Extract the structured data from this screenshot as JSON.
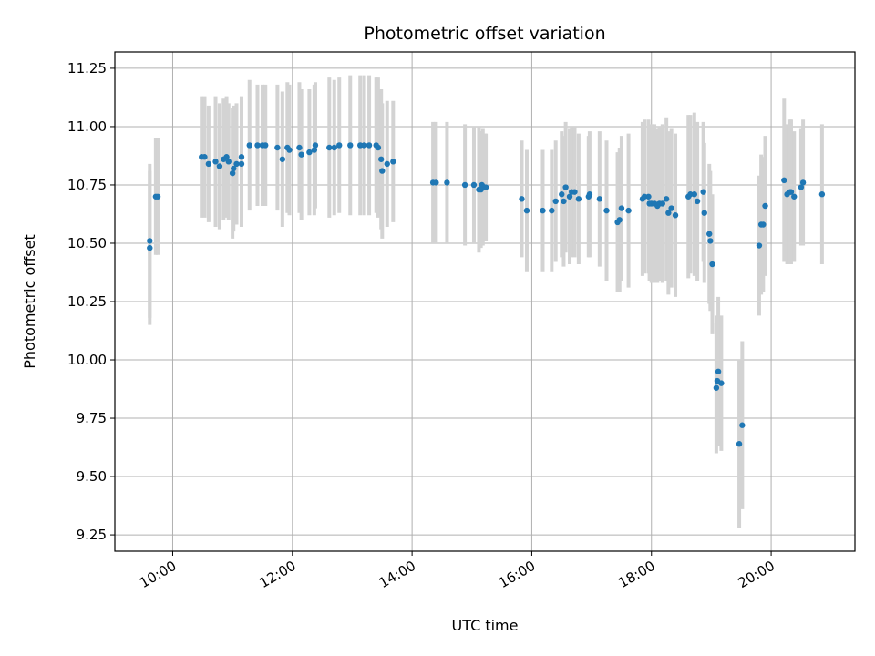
{
  "chart_data": {
    "type": "scatter",
    "title": "Photometric offset variation",
    "xlabel": "UTC time",
    "ylabel": "Photometric offset",
    "x_ticks": [
      "10:00",
      "12:00",
      "14:00",
      "16:00",
      "18:00",
      "20:00"
    ],
    "x_tick_hours": [
      10,
      12,
      14,
      16,
      18,
      20
    ],
    "xlim": [
      "09:02",
      "21:24"
    ],
    "y_ticks": [
      "9.25",
      "9.50",
      "9.75",
      "10.00",
      "10.25",
      "10.50",
      "10.75",
      "11.00",
      "11.25"
    ],
    "ylim": [
      9.18,
      11.32
    ],
    "grid": true,
    "colors": {
      "points": "#1f77b4",
      "error_bars": "#d3d3d3",
      "grid": "#b0b0b0"
    },
    "series": [
      {
        "points": [
          {
            "x": "09:37",
            "y": 10.51,
            "err": 0.33
          },
          {
            "x": "09:37",
            "y": 10.48,
            "err": 0.33
          },
          {
            "x": "09:43",
            "y": 10.7,
            "err": 0.25
          },
          {
            "x": "09:45",
            "y": 10.7,
            "err": 0.25
          },
          {
            "x": "10:29",
            "y": 10.87,
            "err": 0.26
          },
          {
            "x": "10:32",
            "y": 10.87,
            "err": 0.26
          },
          {
            "x": "10:36",
            "y": 10.84,
            "err": 0.25
          },
          {
            "x": "10:43",
            "y": 10.85,
            "err": 0.28
          },
          {
            "x": "10:47",
            "y": 10.83,
            "err": 0.27
          },
          {
            "x": "10:51",
            "y": 10.86,
            "err": 0.26
          },
          {
            "x": "10:54",
            "y": 10.87,
            "err": 0.26
          },
          {
            "x": "10:56",
            "y": 10.85,
            "err": 0.25
          },
          {
            "x": "11:00",
            "y": 10.8,
            "err": 0.28
          },
          {
            "x": "11:01",
            "y": 10.82,
            "err": 0.27
          },
          {
            "x": "11:04",
            "y": 10.84,
            "err": 0.26
          },
          {
            "x": "11:09",
            "y": 10.87,
            "err": 0.26
          },
          {
            "x": "11:09",
            "y": 10.84,
            "err": 0.27
          },
          {
            "x": "11:17",
            "y": 10.92,
            "err": 0.28
          },
          {
            "x": "11:25",
            "y": 10.92,
            "err": 0.26
          },
          {
            "x": "11:30",
            "y": 10.92,
            "err": 0.26
          },
          {
            "x": "11:33",
            "y": 10.92,
            "err": 0.26
          },
          {
            "x": "11:45",
            "y": 10.91,
            "err": 0.27
          },
          {
            "x": "11:50",
            "y": 10.86,
            "err": 0.29
          },
          {
            "x": "11:55",
            "y": 10.91,
            "err": 0.28
          },
          {
            "x": "11:57",
            "y": 10.9,
            "err": 0.28
          },
          {
            "x": "12:07",
            "y": 10.91,
            "err": 0.28
          },
          {
            "x": "12:09",
            "y": 10.88,
            "err": 0.28
          },
          {
            "x": "12:17",
            "y": 10.89,
            "err": 0.27
          },
          {
            "x": "12:22",
            "y": 10.9,
            "err": 0.28
          },
          {
            "x": "12:23",
            "y": 10.92,
            "err": 0.27
          },
          {
            "x": "12:37",
            "y": 10.91,
            "err": 0.3
          },
          {
            "x": "12:42",
            "y": 10.91,
            "err": 0.29
          },
          {
            "x": "12:47",
            "y": 10.92,
            "err": 0.29
          },
          {
            "x": "12:58",
            "y": 10.92,
            "err": 0.3
          },
          {
            "x": "13:08",
            "y": 10.92,
            "err": 0.3
          },
          {
            "x": "13:12",
            "y": 10.92,
            "err": 0.3
          },
          {
            "x": "13:17",
            "y": 10.92,
            "err": 0.3
          },
          {
            "x": "13:24",
            "y": 10.92,
            "err": 0.29
          },
          {
            "x": "13:26",
            "y": 10.91,
            "err": 0.3
          },
          {
            "x": "13:29",
            "y": 10.86,
            "err": 0.3
          },
          {
            "x": "13:30",
            "y": 10.81,
            "err": 0.29
          },
          {
            "x": "13:35",
            "y": 10.84,
            "err": 0.27
          },
          {
            "x": "13:41",
            "y": 10.85,
            "err": 0.26
          },
          {
            "x": "14:21",
            "y": 10.76,
            "err": 0.26
          },
          {
            "x": "14:24",
            "y": 10.76,
            "err": 0.26
          },
          {
            "x": "14:35",
            "y": 10.76,
            "err": 0.26
          },
          {
            "x": "14:53",
            "y": 10.75,
            "err": 0.26
          },
          {
            "x": "15:02",
            "y": 10.75,
            "err": 0.25
          },
          {
            "x": "15:07",
            "y": 10.73,
            "err": 0.27
          },
          {
            "x": "15:09",
            "y": 10.73,
            "err": 0.25
          },
          {
            "x": "15:10",
            "y": 10.75,
            "err": 0.23
          },
          {
            "x": "15:11",
            "y": 10.74,
            "err": 0.25
          },
          {
            "x": "15:13",
            "y": 10.74,
            "err": 0.23
          },
          {
            "x": "15:14",
            "y": 10.74,
            "err": 0.23
          },
          {
            "x": "15:50",
            "y": 10.69,
            "err": 0.25
          },
          {
            "x": "15:55",
            "y": 10.64,
            "err": 0.26
          },
          {
            "x": "16:11",
            "y": 10.64,
            "err": 0.26
          },
          {
            "x": "16:20",
            "y": 10.64,
            "err": 0.26
          },
          {
            "x": "16:24",
            "y": 10.68,
            "err": 0.26
          },
          {
            "x": "16:30",
            "y": 10.71,
            "err": 0.27
          },
          {
            "x": "16:32",
            "y": 10.68,
            "err": 0.28
          },
          {
            "x": "16:34",
            "y": 10.74,
            "err": 0.28
          },
          {
            "x": "16:38",
            "y": 10.7,
            "err": 0.29
          },
          {
            "x": "16:40",
            "y": 10.72,
            "err": 0.28
          },
          {
            "x": "16:43",
            "y": 10.72,
            "err": 0.28
          },
          {
            "x": "16:47",
            "y": 10.69,
            "err": 0.28
          },
          {
            "x": "16:57",
            "y": 10.7,
            "err": 0.26
          },
          {
            "x": "16:58",
            "y": 10.71,
            "err": 0.27
          },
          {
            "x": "17:08",
            "y": 10.69,
            "err": 0.29
          },
          {
            "x": "17:15",
            "y": 10.64,
            "err": 0.3
          },
          {
            "x": "17:26",
            "y": 10.59,
            "err": 0.3
          },
          {
            "x": "17:28",
            "y": 10.6,
            "err": 0.31
          },
          {
            "x": "17:30",
            "y": 10.65,
            "err": 0.31
          },
          {
            "x": "17:37",
            "y": 10.64,
            "err": 0.33
          },
          {
            "x": "17:51",
            "y": 10.69,
            "err": 0.33
          },
          {
            "x": "17:53",
            "y": 10.7,
            "err": 0.33
          },
          {
            "x": "17:57",
            "y": 10.7,
            "err": 0.33
          },
          {
            "x": "17:58",
            "y": 10.67,
            "err": 0.33
          },
          {
            "x": "18:00",
            "y": 10.67,
            "err": 0.34
          },
          {
            "x": "18:03",
            "y": 10.67,
            "err": 0.34
          },
          {
            "x": "18:06",
            "y": 10.66,
            "err": 0.33
          },
          {
            "x": "18:08",
            "y": 10.67,
            "err": 0.33
          },
          {
            "x": "18:11",
            "y": 10.67,
            "err": 0.34
          },
          {
            "x": "18:15",
            "y": 10.69,
            "err": 0.35
          },
          {
            "x": "18:17",
            "y": 10.63,
            "err": 0.35
          },
          {
            "x": "18:20",
            "y": 10.65,
            "err": 0.34
          },
          {
            "x": "18:24",
            "y": 10.62,
            "err": 0.35
          },
          {
            "x": "18:37",
            "y": 10.7,
            "err": 0.35
          },
          {
            "x": "18:39",
            "y": 10.71,
            "err": 0.34
          },
          {
            "x": "18:43",
            "y": 10.71,
            "err": 0.35
          },
          {
            "x": "18:46",
            "y": 10.68,
            "err": 0.34
          },
          {
            "x": "18:52",
            "y": 10.72,
            "err": 0.3
          },
          {
            "x": "18:53",
            "y": 10.63,
            "err": 0.3
          },
          {
            "x": "18:58",
            "y": 10.54,
            "err": 0.3
          },
          {
            "x": "18:59",
            "y": 10.51,
            "err": 0.3
          },
          {
            "x": "19:01",
            "y": 10.41,
            "err": 0.3
          },
          {
            "x": "19:05",
            "y": 9.88,
            "err": 0.28
          },
          {
            "x": "19:06",
            "y": 9.91,
            "err": 0.28
          },
          {
            "x": "19:07",
            "y": 9.95,
            "err": 0.32
          },
          {
            "x": "19:10",
            "y": 9.9,
            "err": 0.29
          },
          {
            "x": "19:28",
            "y": 9.64,
            "err": 0.36
          },
          {
            "x": "19:31",
            "y": 9.72,
            "err": 0.36
          },
          {
            "x": "19:48",
            "y": 10.49,
            "err": 0.3
          },
          {
            "x": "19:50",
            "y": 10.58,
            "err": 0.3
          },
          {
            "x": "19:52",
            "y": 10.58,
            "err": 0.29
          },
          {
            "x": "19:54",
            "y": 10.66,
            "err": 0.3
          },
          {
            "x": "20:13",
            "y": 10.77,
            "err": 0.35
          },
          {
            "x": "20:16",
            "y": 10.71,
            "err": 0.3
          },
          {
            "x": "20:19",
            "y": 10.72,
            "err": 0.31
          },
          {
            "x": "20:20",
            "y": 10.72,
            "err": 0.31
          },
          {
            "x": "20:23",
            "y": 10.7,
            "err": 0.28
          },
          {
            "x": "20:30",
            "y": 10.74,
            "err": 0.25
          },
          {
            "x": "20:32",
            "y": 10.76,
            "err": 0.27
          },
          {
            "x": "20:51",
            "y": 10.71,
            "err": 0.3
          }
        ]
      }
    ]
  }
}
